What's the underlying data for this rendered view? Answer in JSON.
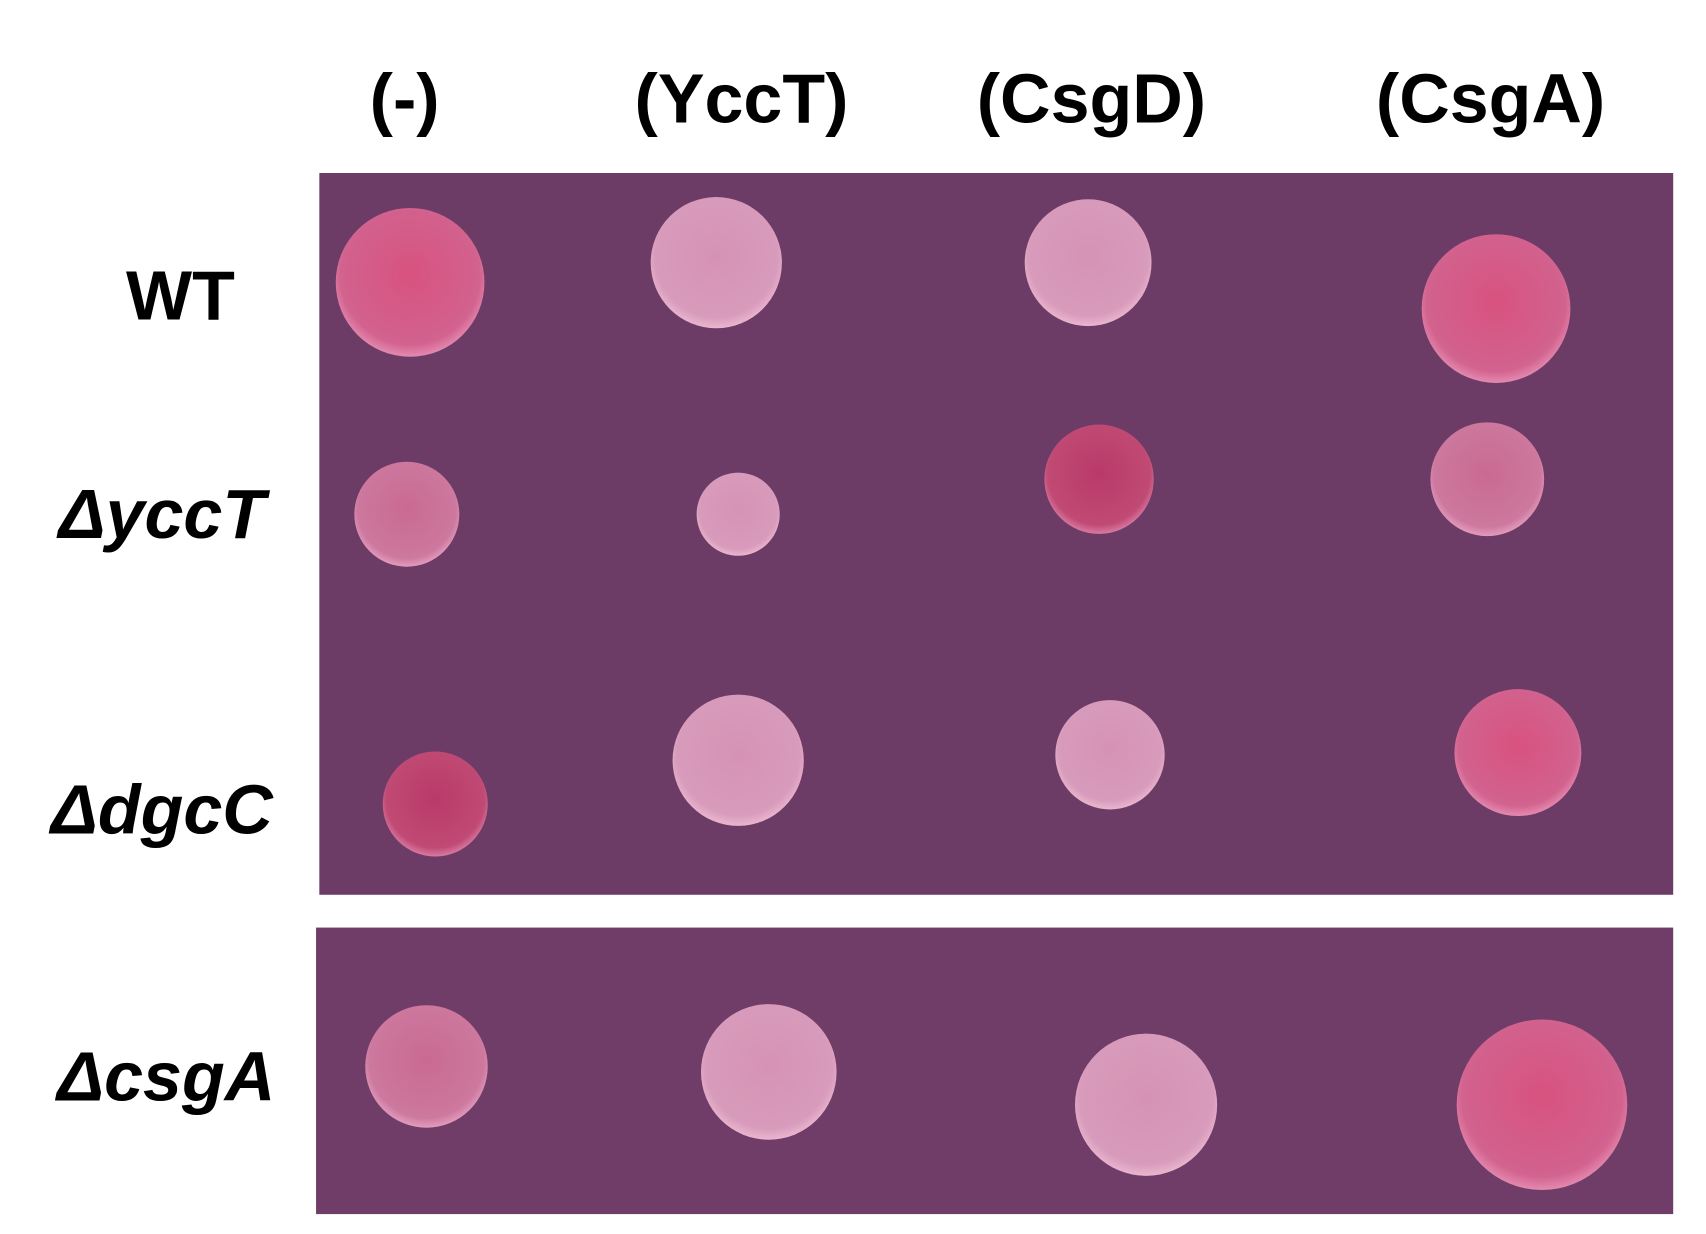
{
  "columns": [
    "(-)",
    "(YccT)",
    "(CsgD)",
    "(CsgA)"
  ],
  "rows": [
    "WT",
    "ΔyccT",
    "ΔdgcC",
    "ΔcsgA"
  ]
}
